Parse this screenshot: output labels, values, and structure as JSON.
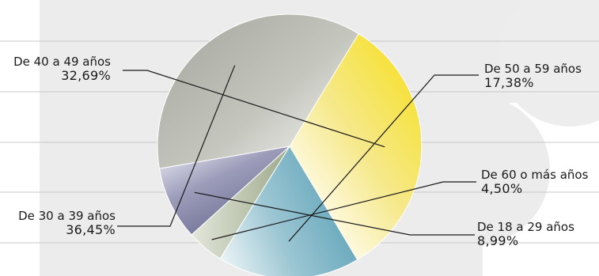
{
  "chart_data": {
    "type": "pie",
    "title": "",
    "slices": [
      {
        "label": "De 40 a 49 años",
        "value": 32.69,
        "value_label": "32,69%",
        "color": "#f5e36a"
      },
      {
        "label": "De 50 a 59 años",
        "value": 17.38,
        "value_label": "17,38%",
        "color": "#8fbfcf"
      },
      {
        "label": "De 60 o más años",
        "value": 4.5,
        "value_label": "4,50%",
        "color": "#b7c1a6"
      },
      {
        "label": "De 18 a 29 años",
        "value": 8.99,
        "value_label": "8,99%",
        "color": "#8f8fad"
      },
      {
        "label": "De 30 a 39 años",
        "value": 36.45,
        "value_label": "36,45%",
        "color": "#b3b5ac"
      }
    ],
    "start_angle_deg": -58.5,
    "direction": "clockwise",
    "legend": "none"
  }
}
